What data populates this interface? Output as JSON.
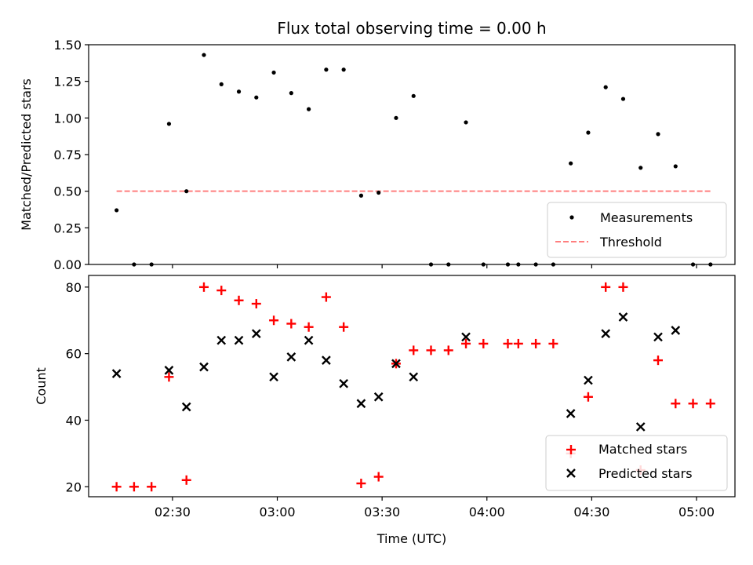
{
  "title": "Flux total observing time = 0.00 h",
  "chart_data": [
    {
      "type": "scatter",
      "panel": "ratio",
      "ylabel": "Matched/Predicted stars",
      "ylim": [
        0,
        1.5
      ],
      "yticks": [
        0,
        0.25,
        0.5,
        0.75,
        1.0,
        1.25,
        1.5
      ],
      "ytick_labels": [
        "0.00",
        "0.25",
        "0.50",
        "0.75",
        "1.00",
        "1.25",
        "1.50"
      ],
      "grid": false,
      "legend": "bottom-right",
      "series": [
        {
          "name": "Measurements",
          "color": "#000000",
          "marker": "dot",
          "x": [
            "02:14",
            "02:19",
            "02:24",
            "02:29",
            "02:34",
            "02:39",
            "02:44",
            "02:49",
            "02:54",
            "02:59",
            "03:04",
            "03:09",
            "03:14",
            "03:19",
            "03:24",
            "03:29",
            "03:34",
            "03:39",
            "03:44",
            "03:49",
            "03:54",
            "03:59",
            "04:06",
            "04:09",
            "04:14",
            "04:19",
            "04:24",
            "04:29",
            "04:34",
            "04:39",
            "04:44",
            "04:49",
            "04:54",
            "04:59",
            "05:04"
          ],
          "values": [
            0.37,
            0,
            0,
            0.96,
            0.5,
            1.43,
            1.23,
            1.18,
            1.14,
            1.31,
            1.17,
            1.06,
            1.33,
            1.33,
            0.47,
            0.49,
            1.0,
            1.15,
            0,
            0,
            0.97,
            0,
            0,
            0,
            0,
            0,
            0.69,
            0.9,
            1.21,
            1.13,
            0.66,
            0.89,
            0.67,
            0,
            0
          ]
        },
        {
          "name": "Threshold",
          "color": "#ff7f7f",
          "style": "dashed",
          "x": [
            "02:14",
            "05:04"
          ],
          "values": [
            0.5,
            0.5
          ]
        }
      ]
    },
    {
      "type": "scatter",
      "panel": "count",
      "ylabel": "Count",
      "xlabel": "Time (UTC)",
      "ylim": [
        17,
        83.5
      ],
      "yticks": [
        20,
        40,
        60,
        80
      ],
      "ytick_labels": [
        "20",
        "40",
        "60",
        "80"
      ],
      "xlim": [
        "02:06",
        "05:11"
      ],
      "xticks": [
        "02:30",
        "03:00",
        "03:30",
        "04:00",
        "04:30",
        "05:00"
      ],
      "xtick_labels": [
        "02:30",
        "03:00",
        "03:30",
        "04:00",
        "04:30",
        "05:00"
      ],
      "grid": false,
      "legend": "bottom-right",
      "series": [
        {
          "name": "Matched stars",
          "color": "#ff0000",
          "marker": "plus",
          "x": [
            "02:14",
            "02:19",
            "02:24",
            "02:29",
            "02:34",
            "02:39",
            "02:44",
            "02:49",
            "02:54",
            "02:59",
            "03:04",
            "03:09",
            "03:14",
            "03:19",
            "03:24",
            "03:29",
            "03:34",
            "03:39",
            "03:44",
            "03:49",
            "03:54",
            "03:59",
            "04:06",
            "04:09",
            "04:14",
            "04:19",
            "04:24",
            "04:29",
            "04:34",
            "04:39",
            "04:44",
            "04:49",
            "04:54",
            "04:59",
            "05:04"
          ],
          "values": [
            20,
            20,
            20,
            53,
            22,
            80,
            79,
            76,
            75,
            70,
            69,
            68,
            77,
            68,
            21,
            23,
            57,
            61,
            61,
            61,
            63,
            63,
            63,
            63,
            63,
            63,
            30,
            47,
            80,
            80,
            25,
            58,
            45,
            45,
            45
          ]
        },
        {
          "name": "Predicted stars",
          "color": "#000000",
          "marker": "x",
          "x": [
            "02:14",
            "02:29",
            "02:34",
            "02:39",
            "02:44",
            "02:49",
            "02:54",
            "02:59",
            "03:04",
            "03:09",
            "03:14",
            "03:19",
            "03:24",
            "03:29",
            "03:34",
            "03:39",
            "03:54",
            "04:24",
            "04:29",
            "04:34",
            "04:39",
            "04:44",
            "04:49",
            "04:54"
          ],
          "values": [
            54,
            55,
            44,
            56,
            64,
            64,
            66,
            53,
            59,
            64,
            58,
            51,
            45,
            47,
            57,
            53,
            65,
            42,
            52,
            66,
            71,
            38,
            65,
            67
          ]
        }
      ]
    }
  ]
}
